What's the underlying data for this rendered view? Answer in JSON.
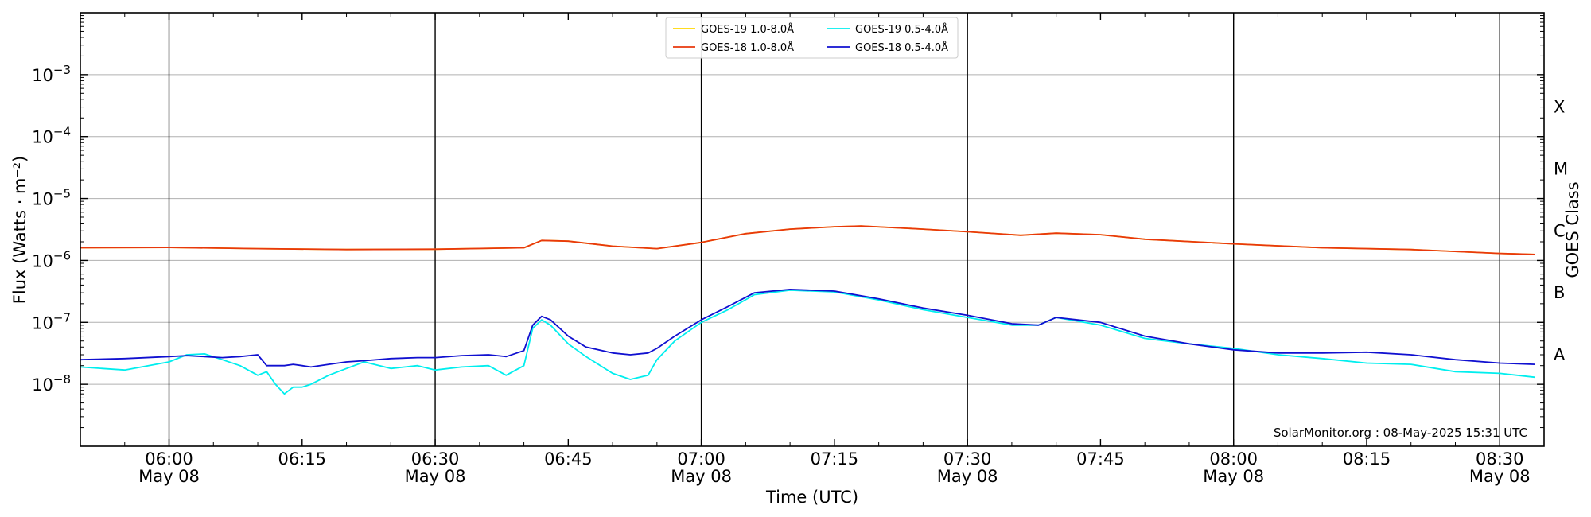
{
  "chart_data": {
    "type": "line",
    "title": "",
    "xlabel": "Time (UTC)",
    "ylabel": "Flux (Watts · m⁻²)",
    "y2label": "GOES Class",
    "yscale": "log",
    "ylim": [
      1e-09,
      0.01
    ],
    "xlim": [
      "05:50",
      "08:35"
    ],
    "grid": "horizontal at decades",
    "legend": "top-center",
    "credit": "SolarMonitor.org : 08-May-2025 15:31 UTC",
    "x_ticks": [
      {
        "time": "06:00",
        "label": "06:00",
        "date": "May 08",
        "major": true
      },
      {
        "time": "06:15",
        "label": "06:15",
        "date": "",
        "major": false
      },
      {
        "time": "06:30",
        "label": "06:30",
        "date": "May 08",
        "major": true
      },
      {
        "time": "06:45",
        "label": "06:45",
        "date": "",
        "major": false
      },
      {
        "time": "07:00",
        "label": "07:00",
        "date": "May 08",
        "major": true
      },
      {
        "time": "07:15",
        "label": "07:15",
        "date": "",
        "major": false
      },
      {
        "time": "07:30",
        "label": "07:30",
        "date": "May 08",
        "major": true
      },
      {
        "time": "07:45",
        "label": "07:45",
        "date": "",
        "major": false
      },
      {
        "time": "08:00",
        "label": "08:00",
        "date": "May 08",
        "major": true
      },
      {
        "time": "08:15",
        "label": "08:15",
        "date": "",
        "major": false
      },
      {
        "time": "08:30",
        "label": "08:30",
        "date": "May 08",
        "major": true
      }
    ],
    "y_ticks": [
      {
        "value": 1e-08,
        "base": "10",
        "exp": "−8"
      },
      {
        "value": 1e-07,
        "base": "10",
        "exp": "−7"
      },
      {
        "value": 1e-06,
        "base": "10",
        "exp": "−6"
      },
      {
        "value": 1e-05,
        "base": "10",
        "exp": "−5"
      },
      {
        "value": 0.0001,
        "base": "10",
        "exp": "−4"
      },
      {
        "value": 0.001,
        "base": "10",
        "exp": "−3"
      }
    ],
    "goes_classes": [
      {
        "label": "A",
        "value": 3e-08
      },
      {
        "label": "B",
        "value": 3e-07
      },
      {
        "label": "C",
        "value": 3e-06
      },
      {
        "label": "M",
        "value": 3e-05
      },
      {
        "label": "X",
        "value": 0.0003
      }
    ],
    "series": [
      {
        "name": "GOES-19 1.0-8.0Å",
        "color": "#ffd700",
        "x": [
          "05:50",
          "06:00",
          "06:10",
          "06:20",
          "06:30",
          "06:40",
          "06:42",
          "06:45",
          "06:50",
          "06:55",
          "07:00",
          "07:05",
          "07:10",
          "07:15",
          "07:18",
          "07:25",
          "07:30",
          "07:36",
          "07:40",
          "07:45",
          "07:50",
          "08:00",
          "08:10",
          "08:20",
          "08:30",
          "08:34"
        ],
        "y": [
          1.6e-06,
          1.62e-06,
          1.55e-06,
          1.5e-06,
          1.52e-06,
          1.6e-06,
          2.1e-06,
          2.05e-06,
          1.7e-06,
          1.55e-06,
          1.95e-06,
          2.7e-06,
          3.2e-06,
          3.5e-06,
          3.6e-06,
          3.2e-06,
          2.9e-06,
          2.55e-06,
          2.75e-06,
          2.6e-06,
          2.2e-06,
          1.85e-06,
          1.6e-06,
          1.5e-06,
          1.3e-06,
          1.25e-06
        ]
      },
      {
        "name": "GOES-18 1.0-8.0Å",
        "color": "#e8380d",
        "x": [
          "05:50",
          "06:00",
          "06:10",
          "06:20",
          "06:30",
          "06:40",
          "06:42",
          "06:45",
          "06:50",
          "06:55",
          "07:00",
          "07:05",
          "07:10",
          "07:15",
          "07:18",
          "07:25",
          "07:30",
          "07:36",
          "07:40",
          "07:45",
          "07:50",
          "08:00",
          "08:10",
          "08:20",
          "08:30",
          "08:34"
        ],
        "y": [
          1.6e-06,
          1.62e-06,
          1.55e-06,
          1.5e-06,
          1.52e-06,
          1.6e-06,
          2.1e-06,
          2.05e-06,
          1.7e-06,
          1.55e-06,
          1.95e-06,
          2.7e-06,
          3.2e-06,
          3.5e-06,
          3.6e-06,
          3.2e-06,
          2.9e-06,
          2.55e-06,
          2.75e-06,
          2.6e-06,
          2.2e-06,
          1.85e-06,
          1.6e-06,
          1.5e-06,
          1.3e-06,
          1.25e-06
        ]
      },
      {
        "name": "GOES-19 0.5-4.0Å",
        "color": "#00eeee",
        "x": [
          "05:50",
          "05:55",
          "06:00",
          "06:02",
          "06:04",
          "06:06",
          "06:08",
          "06:10",
          "06:11",
          "06:12",
          "06:13",
          "06:14",
          "06:15",
          "06:16",
          "06:18",
          "06:20",
          "06:22",
          "06:25",
          "06:28",
          "06:30",
          "06:33",
          "06:36",
          "06:38",
          "06:40",
          "06:41",
          "06:42",
          "06:43",
          "06:45",
          "06:47",
          "06:50",
          "06:52",
          "06:54",
          "06:55",
          "06:57",
          "07:00",
          "07:03",
          "07:06",
          "07:10",
          "07:15",
          "07:20",
          "07:25",
          "07:30",
          "07:35",
          "07:38",
          "07:40",
          "07:45",
          "07:50",
          "07:55",
          "08:00",
          "08:05",
          "08:10",
          "08:15",
          "08:20",
          "08:25",
          "08:30",
          "08:34"
        ],
        "y": [
          1.9e-08,
          1.7e-08,
          2.3e-08,
          3e-08,
          3.1e-08,
          2.5e-08,
          2e-08,
          1.4e-08,
          1.6e-08,
          1e-08,
          7e-09,
          9e-09,
          9e-09,
          1e-08,
          1.4e-08,
          1.8e-08,
          2.3e-08,
          1.8e-08,
          2e-08,
          1.7e-08,
          1.9e-08,
          2e-08,
          1.4e-08,
          2e-08,
          8e-08,
          1.1e-07,
          9e-08,
          4.5e-08,
          2.8e-08,
          1.5e-08,
          1.2e-08,
          1.4e-08,
          2.5e-08,
          5e-08,
          1e-07,
          1.6e-07,
          2.8e-07,
          3.3e-07,
          3.1e-07,
          2.3e-07,
          1.6e-07,
          1.2e-07,
          9e-08,
          9e-08,
          1.2e-07,
          9e-08,
          5.5e-08,
          4.5e-08,
          3.8e-08,
          3e-08,
          2.6e-08,
          2.2e-08,
          2.1e-08,
          1.6e-08,
          1.5e-08,
          1.3e-08
        ]
      },
      {
        "name": "GOES-18 0.5-4.0Å",
        "color": "#1010d0",
        "x": [
          "05:50",
          "05:55",
          "06:00",
          "06:02",
          "06:04",
          "06:06",
          "06:08",
          "06:10",
          "06:11",
          "06:12",
          "06:13",
          "06:14",
          "06:15",
          "06:16",
          "06:18",
          "06:20",
          "06:22",
          "06:25",
          "06:28",
          "06:30",
          "06:33",
          "06:36",
          "06:38",
          "06:40",
          "06:41",
          "06:42",
          "06:43",
          "06:45",
          "06:47",
          "06:50",
          "06:52",
          "06:54",
          "06:55",
          "06:57",
          "07:00",
          "07:03",
          "07:06",
          "07:10",
          "07:15",
          "07:20",
          "07:25",
          "07:30",
          "07:35",
          "07:38",
          "07:40",
          "07:45",
          "07:50",
          "07:55",
          "08:00",
          "08:05",
          "08:10",
          "08:15",
          "08:20",
          "08:25",
          "08:30",
          "08:34"
        ],
        "y": [
          2.5e-08,
          2.6e-08,
          2.8e-08,
          2.9e-08,
          2.8e-08,
          2.7e-08,
          2.8e-08,
          3e-08,
          2e-08,
          2e-08,
          2e-08,
          2.1e-08,
          2e-08,
          1.9e-08,
          2.1e-08,
          2.3e-08,
          2.4e-08,
          2.6e-08,
          2.7e-08,
          2.7e-08,
          2.9e-08,
          3e-08,
          2.8e-08,
          3.5e-08,
          9e-08,
          1.25e-07,
          1.1e-07,
          6e-08,
          4e-08,
          3.2e-08,
          3e-08,
          3.2e-08,
          3.8e-08,
          6e-08,
          1.1e-07,
          1.8e-07,
          3e-07,
          3.4e-07,
          3.2e-07,
          2.4e-07,
          1.7e-07,
          1.3e-07,
          9.5e-08,
          9e-08,
          1.2e-07,
          1e-07,
          6e-08,
          4.5e-08,
          3.6e-08,
          3.2e-08,
          3.2e-08,
          3.3e-08,
          3e-08,
          2.5e-08,
          2.2e-08,
          2.1e-08
        ]
      }
    ]
  }
}
